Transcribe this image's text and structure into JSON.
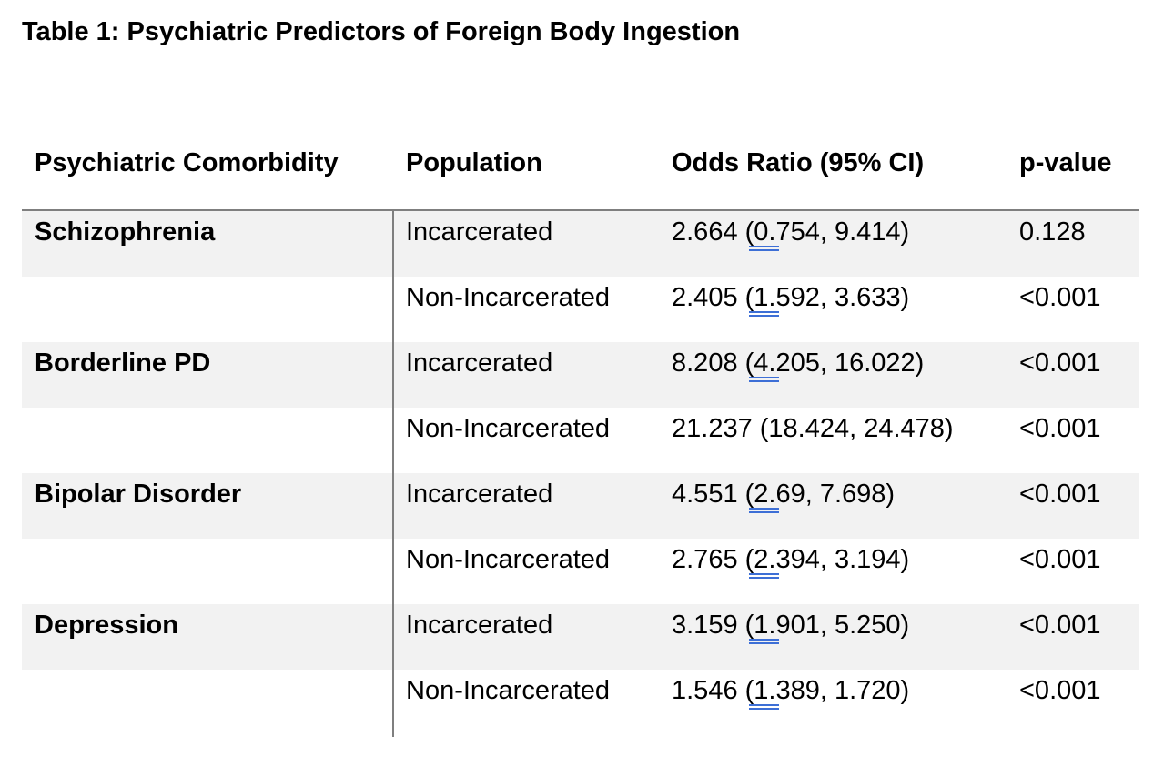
{
  "caption": "Table 1: Psychiatric Predictors of Foreign Body Ingestion",
  "columns": [
    "Psychiatric Comorbidity",
    "Population",
    "Odds Ratio (95% CI)",
    "p-value"
  ],
  "rows": [
    {
      "group": "Schizophrenia",
      "population": "Incarcerated",
      "or": "2.664 (0.754, 9.414)",
      "p": "0.128"
    },
    {
      "group": "",
      "population": "Non-Incarcerated",
      "or": "2.405 (1.592, 3.633)",
      "p": "<0.001"
    },
    {
      "group": "Borderline PD",
      "population": "Incarcerated",
      "or": "8.208 (4.205, 16.022)",
      "p": "<0.001"
    },
    {
      "group": "",
      "population": "Non-Incarcerated",
      "or": "21.237 (18.424, 24.478)",
      "p": "<0.001"
    },
    {
      "group": "Bipolar Disorder",
      "population": "Incarcerated",
      "or": "4.551 (2.69, 7.698)",
      "p": "<0.001"
    },
    {
      "group": "",
      "population": "Non-Incarcerated",
      "or": "2.765 (2.394, 3.194)",
      "p": "<0.001"
    },
    {
      "group": "Depression",
      "population": "Incarcerated",
      "or": "3.159 (1.901, 5.250)",
      "p": "<0.001"
    },
    {
      "group": "",
      "population": "Non-Incarcerated",
      "or": "1.546 (1.389, 1.720)",
      "p": "<0.001"
    }
  ],
  "colors": {
    "row_shade": "#f2f2f2",
    "rule": "#7f7f7f",
    "marker_underline": "#3d6fd6"
  }
}
